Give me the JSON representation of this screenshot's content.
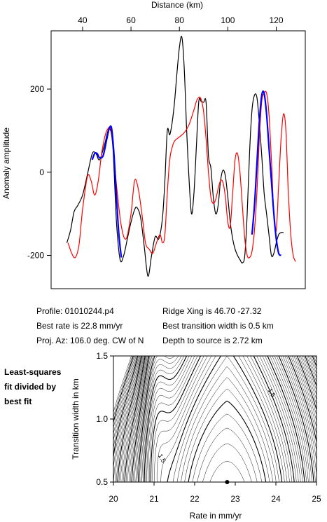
{
  "chart_data": [
    {
      "type": "line",
      "top_axis_label": "Distance (km)",
      "ylabel": "Anomaly amplitude",
      "xlim": [
        27,
        132
      ],
      "ylim": [
        -280,
        340
      ],
      "xticks": [
        40,
        60,
        80,
        100,
        120
      ],
      "yticks": [
        -200,
        0,
        200
      ],
      "grid": false,
      "colors": {
        "observed": "#000000",
        "model": "#ff0000",
        "fit": "#0000ff"
      },
      "series": [
        {
          "key": "observed",
          "color": "#000000",
          "x": [
            33.5,
            35,
            36.5,
            38,
            40,
            42,
            44,
            45.5,
            47,
            49,
            51,
            52.5,
            54,
            55.5,
            57,
            58.5,
            60,
            61.5,
            62.5,
            64,
            65.5,
            67,
            68.5,
            70,
            71.5,
            73,
            74,
            75,
            76,
            77,
            78,
            79,
            80,
            81,
            82,
            83,
            84,
            85,
            86,
            87,
            88,
            89,
            90,
            91,
            92,
            93,
            94,
            95,
            96,
            97,
            98,
            99,
            100,
            101,
            102,
            103,
            104,
            105,
            106,
            107,
            108,
            109,
            110,
            111,
            112,
            113,
            114,
            115,
            116,
            117,
            118,
            119,
            120,
            121,
            122,
            123
          ],
          "y": [
            -170,
            -140,
            -95,
            -80,
            -55,
            -5,
            45,
            45,
            30,
            65,
            105,
            60,
            -120,
            -210,
            -200,
            -160,
            -120,
            -90,
            -85,
            -110,
            -180,
            -250,
            -200,
            -155,
            -160,
            -110,
            -20,
            100,
            90,
            120,
            170,
            240,
            300,
            325,
            250,
            100,
            -20,
            -100,
            -50,
            60,
            170,
            170,
            168,
            168,
            40,
            10,
            -60,
            -100,
            -80,
            -20,
            5,
            -10,
            -60,
            -120,
            -160,
            -185,
            -200,
            -210,
            -218,
            -200,
            -100,
            50,
            150,
            185,
            180,
            120,
            40,
            -50,
            -100,
            -150,
            -200,
            -195,
            -170,
            -150,
            -145,
            -145
          ]
        },
        {
          "key": "model",
          "color": "#ff0000",
          "x": [
            34,
            35.5,
            37,
            38.5,
            40,
            42,
            43.5,
            45,
            46.5,
            48,
            50,
            52,
            54,
            56,
            58,
            60,
            61.5,
            63,
            64.5,
            66,
            67.5,
            69,
            70.5,
            72,
            73,
            74,
            75,
            76,
            77,
            78,
            80,
            82,
            84,
            86,
            87,
            88,
            89,
            90,
            91,
            92,
            93,
            94,
            95,
            96,
            97,
            98,
            99,
            100,
            101,
            102,
            103,
            104,
            105,
            106,
            107,
            108,
            109,
            110,
            111,
            112,
            113,
            114,
            115,
            116,
            117,
            118,
            119,
            120,
            121,
            122,
            123,
            124,
            125,
            126,
            127,
            128
          ],
          "y": [
            -170,
            -195,
            -205,
            -175,
            -90,
            -10,
            -20,
            -55,
            -20,
            50,
            100,
            95,
            -30,
            -130,
            -160,
            -100,
            -20,
            -40,
            -100,
            -170,
            -185,
            -195,
            -170,
            -150,
            -170,
            -150,
            -50,
            30,
            60,
            75,
            85,
            95,
            115,
            150,
            170,
            180,
            175,
            145,
            80,
            0,
            -60,
            -75,
            -65,
            -40,
            -20,
            -25,
            -60,
            -120,
            -130,
            -50,
            30,
            45,
            0,
            -80,
            -160,
            -200,
            -205,
            -190,
            -140,
            -50,
            80,
            170,
            190,
            190,
            140,
            30,
            -100,
            -140,
            -30,
            80,
            140,
            100,
            -50,
            -150,
            -200,
            -215
          ]
        },
        {
          "key": "fit",
          "color": "#0000ff",
          "segments": [
            {
              "x": [
                44,
                45,
                46,
                47,
                48.5,
                50,
                51,
                52,
                53,
                54,
                55,
                56
              ],
              "y": [
                30,
                45,
                45,
                35,
                40,
                80,
                105,
                105,
                40,
                -60,
                -150,
                -205
              ]
            },
            {
              "x": [
                110,
                111,
                112,
                113,
                114,
                115,
                116,
                117,
                118,
                119,
                120,
                121,
                122
              ],
              "y": [
                -150,
                -80,
                20,
                120,
                185,
                190,
                140,
                60,
                -20,
                -100,
                -160,
                -195,
                -200
              ]
            }
          ]
        }
      ]
    },
    {
      "type": "contour",
      "xlabel": "Rate in mm/yr",
      "ylabel": "Transition width in km",
      "xlim": [
        20,
        25
      ],
      "ylim": [
        0.5,
        1.5
      ],
      "xticks": [
        20,
        21,
        22,
        23,
        24,
        25
      ],
      "yticks": [
        0.5,
        1.0,
        1.5
      ],
      "contour_labels": [
        {
          "text": "1.5",
          "x": 23.85,
          "y": 1.2
        },
        {
          "text": "1.5",
          "x": 21.15,
          "y": 0.68
        }
      ],
      "best_fit_point": {
        "x": 22.8,
        "y": 0.5
      }
    }
  ],
  "info": {
    "profile": "Profile: 01010244.p4",
    "rate": "Best rate is 22.8 mm/yr",
    "azimuth": "Proj. Az: 106.0 deg. CW of N",
    "ridge": "Ridge Xing is 46.70 -27.32",
    "transition": "Best transition width is 0.5 km",
    "depth": "Depth to source is   2.72 km"
  },
  "side_note": [
    "Least-squares",
    "fit divided by",
    "best fit"
  ]
}
